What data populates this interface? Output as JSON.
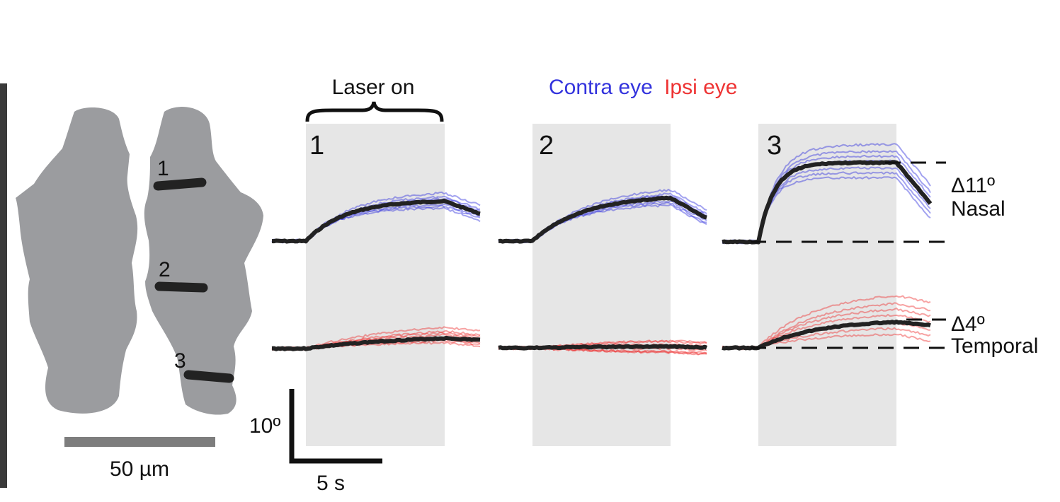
{
  "figure": {
    "laser_label": "Laser on",
    "legend": {
      "contra_label": "Contra eye",
      "ipsi_label": "Ipsi eye",
      "contra_color": "#3333dd",
      "ipsi_color": "#ee3333"
    },
    "stimulus_color": "#e6e6e6",
    "mean_color": "#222222",
    "schematic": {
      "fill_color": "#9b9c9f",
      "sites": [
        "1",
        "2",
        "3"
      ],
      "scalebar_label": "50 µm"
    },
    "panels": [
      {
        "label": "1"
      },
      {
        "label": "2"
      },
      {
        "label": "3"
      }
    ],
    "scalebars": {
      "vertical_label": "10º",
      "horizontal_label": "5 s"
    },
    "annotations": {
      "nasal_delta": "Δ11º",
      "nasal_label": "Nasal",
      "temporal_delta": "Δ4º",
      "temporal_label": "Temporal"
    },
    "traces": {
      "panel_1": {
        "contra_mean_shape": "rise",
        "ipsi_mean_shape": "slow-rise"
      },
      "panel_2": {
        "contra_mean_shape": "rise",
        "ipsi_mean_shape": "flat"
      },
      "panel_3": {
        "contra_mean_shape": "fast-rise",
        "ipsi_mean_shape": "rise"
      }
    }
  }
}
